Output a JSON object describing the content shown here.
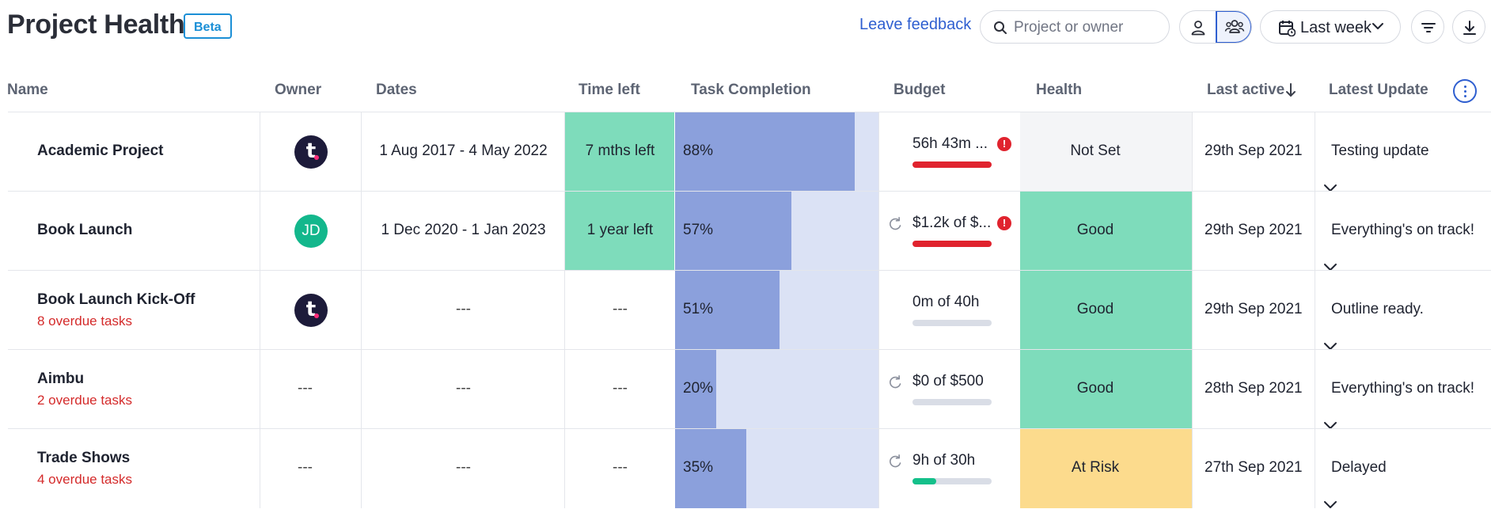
{
  "page": {
    "title": "Project Health",
    "badge": "Beta"
  },
  "toolbar": {
    "feedback_label": "Leave feedback",
    "search_placeholder": "Project or owner",
    "period_label": "Last week"
  },
  "columns": {
    "name": "Name",
    "owner": "Owner",
    "dates": "Dates",
    "time_left": "Time left",
    "task_completion": "Task Completion",
    "budget": "Budget",
    "health": "Health",
    "last_active": "Last active",
    "latest_update": "Latest Update"
  },
  "colors": {
    "good": "#7edcbb",
    "at_risk": "#fcdb8d",
    "not_set": "#f4f5f7",
    "alert": "#e0232e",
    "accent": "#2f5fd0"
  },
  "rows": [
    {
      "name": "Academic Project",
      "overdue": "",
      "owner_initials": "t.",
      "dates": "1 Aug 2017 - 4 May 2022",
      "time_left": "7 mths left",
      "completion": 88,
      "completion_label": "88%",
      "budget": "56h 43m ...",
      "budget_fraction": 1.0,
      "budget_over": true,
      "recurring": false,
      "health": "Not Set",
      "last_active": "29th Sep 2021",
      "latest_update": "Testing update"
    },
    {
      "name": "Book Launch",
      "overdue": "",
      "owner_initials": "JD",
      "dates": "1 Dec 2020 - 1 Jan 2023",
      "time_left": "1 year left",
      "completion": 57,
      "completion_label": "57%",
      "budget": "$1.2k of $...",
      "budget_fraction": 1.0,
      "budget_over": true,
      "recurring": true,
      "health": "Good",
      "last_active": "29th Sep 2021",
      "latest_update": "Everything's on track!"
    },
    {
      "name": "Book Launch Kick-Off",
      "overdue": "8 overdue tasks",
      "owner_initials": "t.",
      "dates": "---",
      "time_left": "---",
      "completion": 51,
      "completion_label": "51%",
      "budget": "0m of 40h",
      "budget_fraction": 0.0,
      "budget_over": false,
      "recurring": false,
      "health": "Good",
      "last_active": "29th Sep 2021",
      "latest_update": "Outline ready."
    },
    {
      "name": "Aimbu",
      "overdue": "2 overdue tasks",
      "owner_initials": "---",
      "dates": "---",
      "time_left": "---",
      "completion": 20,
      "completion_label": "20%",
      "budget": "$0 of $500",
      "budget_fraction": 0.0,
      "budget_over": false,
      "recurring": true,
      "health": "Good",
      "last_active": "28th Sep 2021",
      "latest_update": "Everything's on track!"
    },
    {
      "name": "Trade Shows",
      "overdue": "4 overdue tasks",
      "owner_initials": "---",
      "dates": "---",
      "time_left": "---",
      "completion": 35,
      "completion_label": "35%",
      "budget": "9h of 30h",
      "budget_fraction": 0.3,
      "budget_over": false,
      "recurring": true,
      "health": "At Risk",
      "last_active": "27th Sep 2021",
      "latest_update": "Delayed"
    }
  ]
}
